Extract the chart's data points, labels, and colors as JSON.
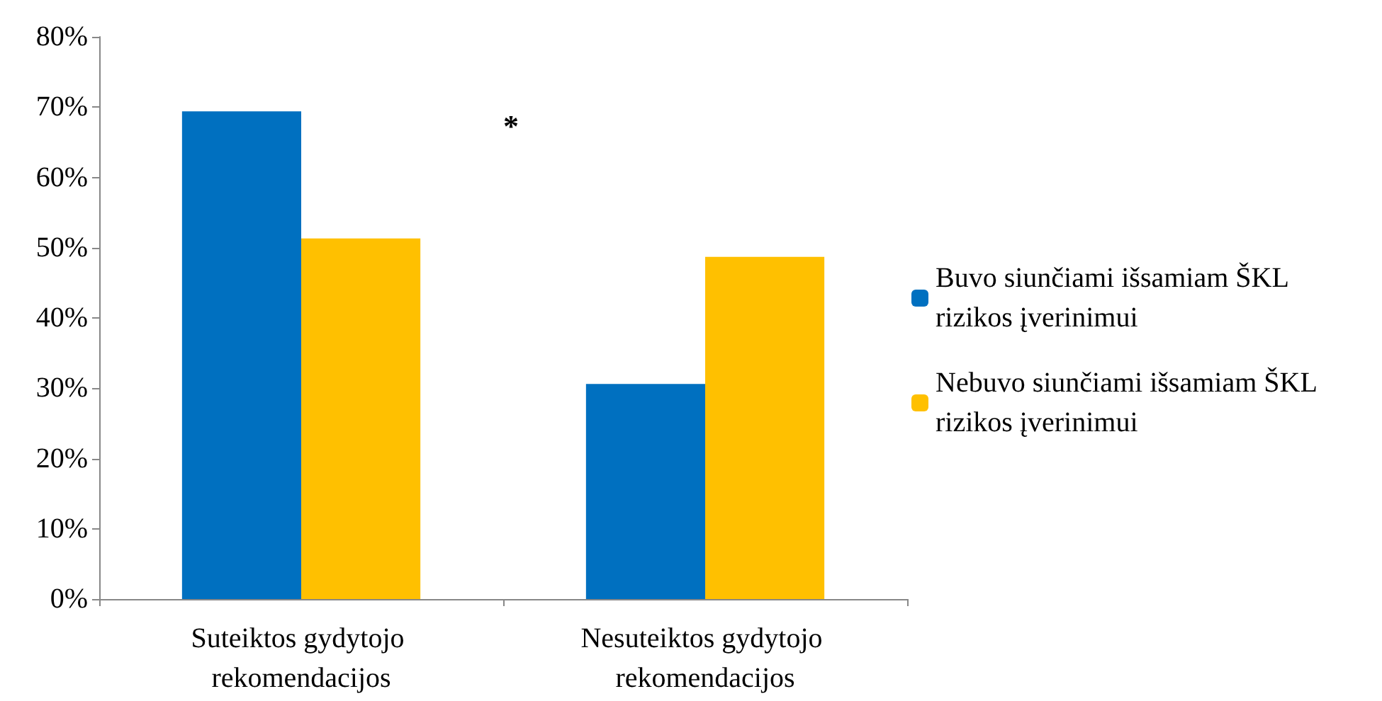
{
  "chart_data": {
    "type": "bar",
    "categories": [
      "Suteiktos gydytojo rekomendacijos",
      "Nesuteiktos gydytojo rekomendacijos"
    ],
    "series": [
      {
        "name": "Buvo siunčiami išsamiam ŠKL rizikos įverinimui",
        "color": "#0070c0",
        "values": [
          69.4,
          30.6
        ]
      },
      {
        "name": "Nebuvo siunčiami išsamiam ŠKL rizikos įverinimui",
        "color": "#ffc000",
        "values": [
          51.3,
          48.7
        ]
      }
    ],
    "ylim": [
      0,
      80
    ],
    "yticks": [
      {
        "value": 0,
        "label": "0%"
      },
      {
        "value": 10,
        "label": "10%"
      },
      {
        "value": 20,
        "label": "20%"
      },
      {
        "value": 30,
        "label": "30%"
      },
      {
        "value": 40,
        "label": "40%"
      },
      {
        "value": 50,
        "label": "50%"
      },
      {
        "value": 60,
        "label": "60%"
      },
      {
        "value": 70,
        "label": "70%"
      },
      {
        "value": 80,
        "label": "80%"
      }
    ],
    "grid": false,
    "legend": "right",
    "annotations": [
      "*"
    ]
  }
}
